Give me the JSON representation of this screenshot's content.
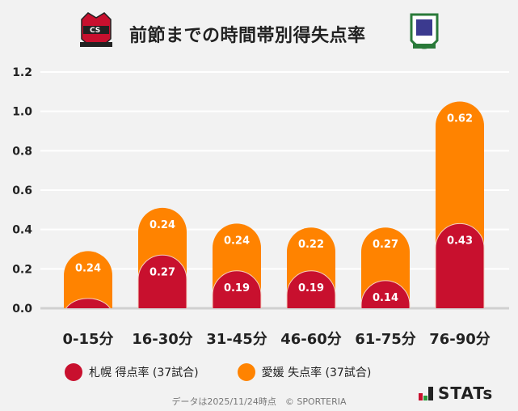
{
  "header": {
    "title": "前節までの時間帯別得失点率",
    "home_logo": "consadole-sapporo-crest",
    "away_logo": "ehime-fc-crest"
  },
  "chart_data": {
    "type": "bar",
    "stacked": true,
    "categories": [
      "0-15分",
      "16-30分",
      "31-45分",
      "46-60分",
      "61-75分",
      "76-90分"
    ],
    "series": [
      {
        "name": "札幌 得点率 (37試合)",
        "color": "#c8102e",
        "values": [
          0.05,
          0.27,
          0.19,
          0.19,
          0.14,
          0.43
        ],
        "labels": [
          "",
          "0.27",
          "0.19",
          "0.19",
          "0.14",
          "0.43"
        ]
      },
      {
        "name": "愛媛 失点率 (37試合)",
        "color": "#ff8300",
        "values": [
          0.24,
          0.24,
          0.24,
          0.22,
          0.27,
          0.62
        ],
        "labels": [
          "0.24",
          "0.24",
          "0.24",
          "0.22",
          "0.27",
          "0.62"
        ]
      }
    ],
    "yticks": [
      "0.0",
      "0.2",
      "0.4",
      "0.6",
      "0.8",
      "1.0",
      "1.2"
    ],
    "ylim": [
      0,
      1.2
    ],
    "grid": true,
    "legend": "bottom"
  },
  "footer": {
    "text": "データは2025/11/24時点　© SPORTERIA",
    "brand": "STATs"
  }
}
